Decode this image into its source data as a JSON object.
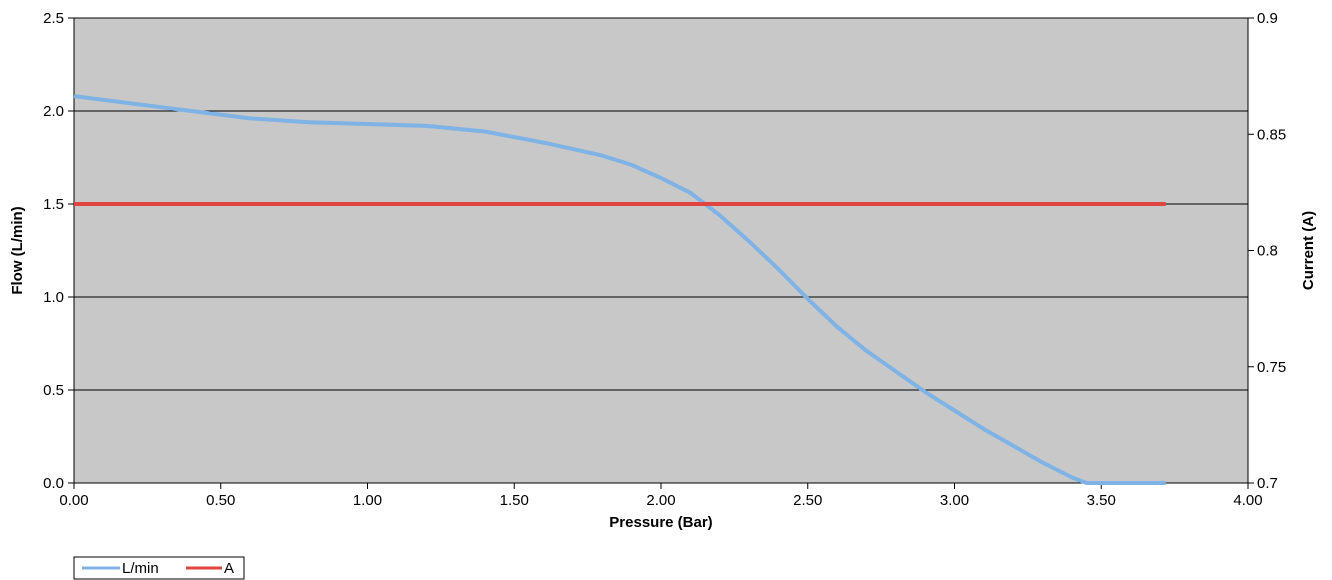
{
  "chart_data": {
    "type": "line",
    "title": "",
    "xlabel": "Pressure (Bar)",
    "ylabel": "Flow (L/min)",
    "y2label": "Current (A)",
    "xlim": [
      0,
      4
    ],
    "ylim": [
      0,
      2.5
    ],
    "y2lim": [
      0.7,
      0.9
    ],
    "x_ticks": [
      "0.00",
      "0.50",
      "1.00",
      "1.50",
      "2.00",
      "2.50",
      "3.00",
      "3.50",
      "4.00"
    ],
    "y_ticks": [
      "0.0",
      "0.5",
      "1.0",
      "1.5",
      "2.0",
      "2.5"
    ],
    "y2_ticks": [
      "0.7",
      "0.75",
      "0.8",
      "0.85",
      "0.9"
    ],
    "grid": true,
    "legend_position": "bottom-left",
    "plot_background": "#c8c8c8",
    "series": [
      {
        "name": "L/min",
        "axis": "left",
        "color": "#7fb2e5",
        "x": [
          0.0,
          0.2,
          0.4,
          0.6,
          0.8,
          1.0,
          1.2,
          1.4,
          1.6,
          1.8,
          1.9,
          2.0,
          2.1,
          2.2,
          2.3,
          2.4,
          2.5,
          2.6,
          2.7,
          2.8,
          2.9,
          3.0,
          3.1,
          3.2,
          3.3,
          3.4,
          3.45,
          3.5,
          3.6,
          3.72
        ],
        "y": [
          2.08,
          2.04,
          2.0,
          1.96,
          1.94,
          1.93,
          1.92,
          1.89,
          1.83,
          1.76,
          1.71,
          1.64,
          1.56,
          1.44,
          1.3,
          1.15,
          0.99,
          0.84,
          0.71,
          0.6,
          0.49,
          0.39,
          0.29,
          0.2,
          0.11,
          0.03,
          0.0,
          0.0,
          0.0,
          0.0
        ]
      },
      {
        "name": "A",
        "axis": "right",
        "color": "#e0463f",
        "x": [
          0.0,
          3.72
        ],
        "y": [
          0.82,
          0.82
        ]
      }
    ]
  }
}
